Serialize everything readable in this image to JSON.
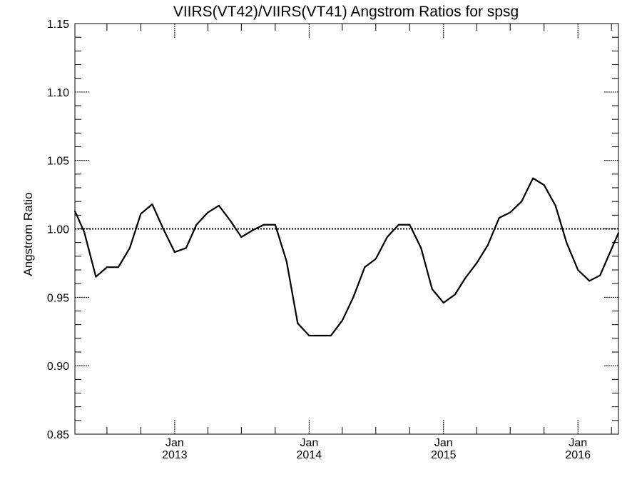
{
  "chart_data": {
    "type": "line",
    "title": "VIIRS(VT42)/VIIRS(VT41)  Angstrom Ratios for spsg",
    "xlabel": "",
    "ylabel": "Angstrom Ratio",
    "xlim": [
      "2012-04-05",
      "2016-04-20"
    ],
    "ylim": [
      0.85,
      1.15
    ],
    "yticks": [
      0.85,
      0.9,
      0.95,
      1.0,
      1.05,
      1.1,
      1.15
    ],
    "ytick_labels": [
      "0.85",
      "0.90",
      "0.95",
      "1.00",
      "1.05",
      "1.10",
      "1.15"
    ],
    "xticks": [
      {
        "date": "2013-01-01",
        "month": "Jan",
        "year": "2013"
      },
      {
        "date": "2014-01-01",
        "month": "Jan",
        "year": "2014"
      },
      {
        "date": "2015-01-01",
        "month": "Jan",
        "year": "2015"
      },
      {
        "date": "2016-01-01",
        "month": "Jan",
        "year": "2016"
      }
    ],
    "reference_line": {
      "y": 1.0,
      "style": "dotted"
    },
    "grid": false,
    "series": [
      {
        "name": "",
        "color": "#000000",
        "x": [
          "2012-04-05",
          "2012-04-30",
          "2012-06-01",
          "2012-07-01",
          "2012-08-01",
          "2012-09-01",
          "2012-10-01",
          "2012-11-01",
          "2012-12-01",
          "2013-01-01",
          "2013-02-01",
          "2013-03-01",
          "2013-04-01",
          "2013-05-01",
          "2013-06-01",
          "2013-07-01",
          "2013-08-01",
          "2013-08-31",
          "2013-10-01",
          "2013-11-01",
          "2013-12-01",
          "2014-01-01",
          "2014-02-01",
          "2014-03-01",
          "2014-04-01",
          "2014-05-01",
          "2014-06-01",
          "2014-07-01",
          "2014-08-01",
          "2014-09-01",
          "2014-10-01",
          "2014-11-01",
          "2014-12-01",
          "2015-01-01",
          "2015-02-01",
          "2015-03-01",
          "2015-04-01",
          "2015-05-01",
          "2015-06-01",
          "2015-07-01",
          "2015-08-01",
          "2015-09-01",
          "2015-10-01",
          "2015-11-01",
          "2015-12-01",
          "2016-01-01",
          "2016-02-01",
          "2016-03-01",
          "2016-04-20"
        ],
        "y": [
          1.013,
          0.998,
          0.965,
          0.972,
          0.972,
          0.986,
          1.011,
          1.018,
          1.0,
          0.983,
          0.986,
          1.003,
          1.012,
          1.017,
          1.006,
          0.994,
          0.999,
          1.003,
          1.003,
          0.976,
          0.931,
          0.922,
          0.922,
          0.922,
          0.933,
          0.95,
          0.972,
          0.978,
          0.994,
          1.003,
          1.003,
          0.986,
          0.956,
          0.946,
          0.952,
          0.964,
          0.975,
          0.988,
          1.008,
          1.012,
          1.02,
          1.037,
          1.032,
          1.017,
          0.99,
          0.97,
          0.962,
          0.966,
          0.997
        ]
      }
    ]
  }
}
